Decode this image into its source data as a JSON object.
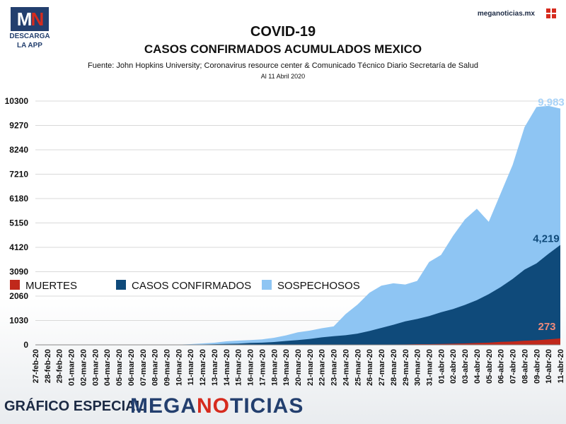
{
  "logo": {
    "mark_left": "M",
    "mark_right": "N",
    "line1": "DESCARGA",
    "line2": "LA APP"
  },
  "site": "meganoticias.mx",
  "footer": {
    "left": "GRÁFICO ESPECIAL",
    "right_a": "MEGA",
    "right_b": "NO",
    "right_c": "TICIAS"
  },
  "colors": {
    "muertes": "#c0281b",
    "confirmados": "#0f4a7a",
    "sospechosos": "#8ec5f3"
  },
  "chart_data": {
    "type": "area",
    "title": "COVID-19",
    "subtitle": "CASOS CONFIRMADOS ACUMULADOS MEXICO",
    "source": "Fuente: John Hopkins University; Coronavirus resource center & Comunicado Técnico Diario Secretaría de Salud",
    "date_note": "Al 11 Abril 2020",
    "stacked": false,
    "yticks": [
      0,
      1030,
      2060,
      3090,
      4120,
      5150,
      6180,
      7210,
      8240,
      9270,
      10300
    ],
    "ylim": [
      0,
      10300
    ],
    "grid": true,
    "legend_position": "lower-left",
    "categories": [
      "27-feb-20",
      "28-feb-20",
      "29-feb-20",
      "01-mar-20",
      "02-mar-20",
      "03-mar-20",
      "04-mar-20",
      "05-mar-20",
      "06-mar-20",
      "07-mar-20",
      "08-mar-20",
      "09-mar-20",
      "10-mar-20",
      "11-mar-20",
      "12-mar-20",
      "13-mar-20",
      "14-mar-20",
      "15-mar-20",
      "16-mar-20",
      "17-mar-20",
      "18-mar-20",
      "19-mar-20",
      "20-mar-20",
      "21-mar-20",
      "22-mar-20",
      "23-mar-20",
      "24-mar-20",
      "25-mar-20",
      "26-mar-20",
      "27-mar-20",
      "28-mar-20",
      "29-mar-20",
      "30-mar-20",
      "31-mar-20",
      "01-abr-20",
      "02-abr-20",
      "03-abr-20",
      "04-abr-20",
      "05-abr-20",
      "06-abr-20",
      "07-abr-20",
      "08-abr-20",
      "09-abr-20",
      "10-abr-20",
      "11-abr-20"
    ],
    "series": [
      {
        "name": "SOSPECHOSOS",
        "values": [
          0,
          0,
          0,
          0,
          0,
          0,
          0,
          0,
          0,
          0,
          0,
          0,
          10,
          30,
          60,
          90,
          150,
          180,
          200,
          230,
          300,
          400,
          530,
          600,
          700,
          780,
          1300,
          1700,
          2200,
          2500,
          2600,
          2550,
          2700,
          3500,
          3800,
          4600,
          5300,
          5750,
          5200,
          6400,
          7600,
          9200,
          10050,
          10100,
          9983
        ]
      },
      {
        "name": "CASOS CONFIRMADOS",
        "values": [
          2,
          4,
          4,
          5,
          5,
          5,
          5,
          5,
          6,
          7,
          7,
          7,
          7,
          11,
          15,
          26,
          41,
          53,
          82,
          93,
          118,
          164,
          203,
          251,
          316,
          367,
          405,
          475,
          585,
          717,
          848,
          993,
          1094,
          1215,
          1378,
          1510,
          1688,
          1890,
          2143,
          2439,
          2785,
          3181,
          3441,
          3844,
          4219
        ]
      },
      {
        "name": "MUERTES",
        "values": [
          0,
          0,
          0,
          0,
          0,
          0,
          0,
          0,
          0,
          0,
          0,
          0,
          0,
          0,
          0,
          0,
          0,
          0,
          0,
          0,
          0,
          1,
          2,
          2,
          2,
          4,
          5,
          6,
          8,
          12,
          16,
          20,
          28,
          29,
          37,
          50,
          60,
          79,
          94,
          125,
          141,
          174,
          194,
          233,
          273
        ]
      }
    ],
    "end_labels": {
      "sospechosos": "9,983",
      "confirmados": "4,219",
      "muertes": "273"
    }
  }
}
